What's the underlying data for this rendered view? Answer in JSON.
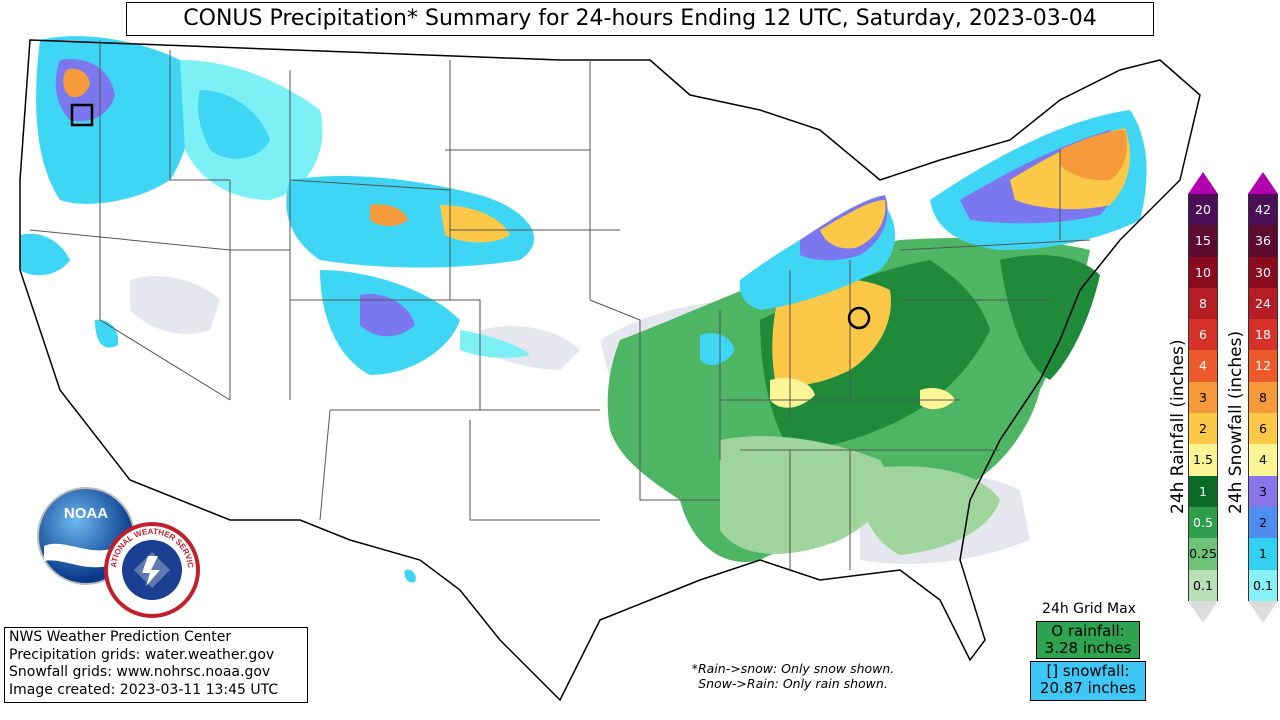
{
  "title": "CONUS Precipitation* Summary for 24-hours Ending 12 UTC, Saturday, 2023-03-04",
  "info": {
    "line1": "NWS Weather Prediction Center",
    "line2": "Precipitation grids: water.weather.gov",
    "line3": "Snowfall grids: www.nohrsc.noaa.gov",
    "line4": "Image created: 2023-03-11 13:45 UTC"
  },
  "notes": {
    "line1": "*Rain->snow: Only snow shown.",
    "line2": "Snow->Rain: Only rain shown."
  },
  "grid_max": {
    "title": "24h Grid Max",
    "rain_label": "O rainfall:",
    "rain_value": "3.28 inches",
    "snow_label": "[] snowfall:",
    "snow_value": "20.87 inches",
    "rain_color": "#2ea350",
    "snow_color": "#3ec7f5"
  },
  "logos": {
    "noaa": "NOAA",
    "nws": "NATIONAL WEATHER SERVICE"
  },
  "rain_legend": {
    "label": "24h Rainfall (inches)",
    "levels": [
      {
        "value": "20",
        "color": "#4a0f57"
      },
      {
        "value": "15",
        "color": "#5c0a2e"
      },
      {
        "value": "10",
        "color": "#8a0a1e"
      },
      {
        "value": "8",
        "color": "#b51c24"
      },
      {
        "value": "6",
        "color": "#d6322a"
      },
      {
        "value": "4",
        "color": "#ec5a2c"
      },
      {
        "value": "3",
        "color": "#f79a3c"
      },
      {
        "value": "2",
        "color": "#fbc847"
      },
      {
        "value": "1.5",
        "color": "#fbf596"
      },
      {
        "value": "1",
        "color": "#0b6b26"
      },
      {
        "value": "0.5",
        "color": "#2e9e4a"
      },
      {
        "value": "0.25",
        "color": "#6dc277"
      },
      {
        "value": "0.1",
        "color": "#b7deb4"
      }
    ]
  },
  "snow_legend": {
    "label": "24h Snowfall (inches)",
    "levels": [
      {
        "value": "42",
        "color": "#4a0f57"
      },
      {
        "value": "36",
        "color": "#5c0a2e"
      },
      {
        "value": "30",
        "color": "#8a0a1e"
      },
      {
        "value": "24",
        "color": "#b51c24"
      },
      {
        "value": "18",
        "color": "#d6322a"
      },
      {
        "value": "12",
        "color": "#ec5a2c"
      },
      {
        "value": "8",
        "color": "#f79a3c"
      },
      {
        "value": "6",
        "color": "#fbc847"
      },
      {
        "value": "4",
        "color": "#fbf596"
      },
      {
        "value": "3",
        "color": "#8a74ea"
      },
      {
        "value": "2",
        "color": "#4f8ef0"
      },
      {
        "value": "1",
        "color": "#33d0f2"
      },
      {
        "value": "0.1",
        "color": "#86f2f7"
      }
    ]
  },
  "colors": {
    "snow_light": "#7df0f5",
    "snow_mid": "#3fd6f5",
    "snow_heavy": "#7b78ef",
    "rain_light": "#9fd49d",
    "rain_mid": "#4db563",
    "rain_heavy": "#1e8a3a",
    "mix_light": "#e6e6ee",
    "border": "#555555"
  }
}
